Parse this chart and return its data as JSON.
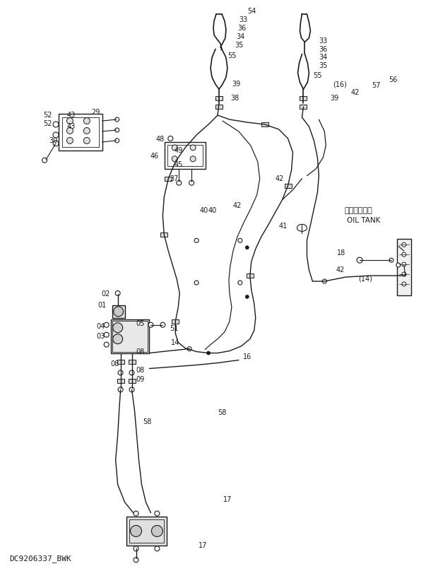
{
  "bg_color": "#ffffff",
  "line_color": "#1a1a1a",
  "text_color": "#1a1a1a",
  "watermark": "DC9206337_BWK",
  "oil_tank_jp": "オイルタンク",
  "oil_tank_en": "OIL TANK",
  "figsize": [
    6.2,
    8.08
  ],
  "dpi": 100
}
